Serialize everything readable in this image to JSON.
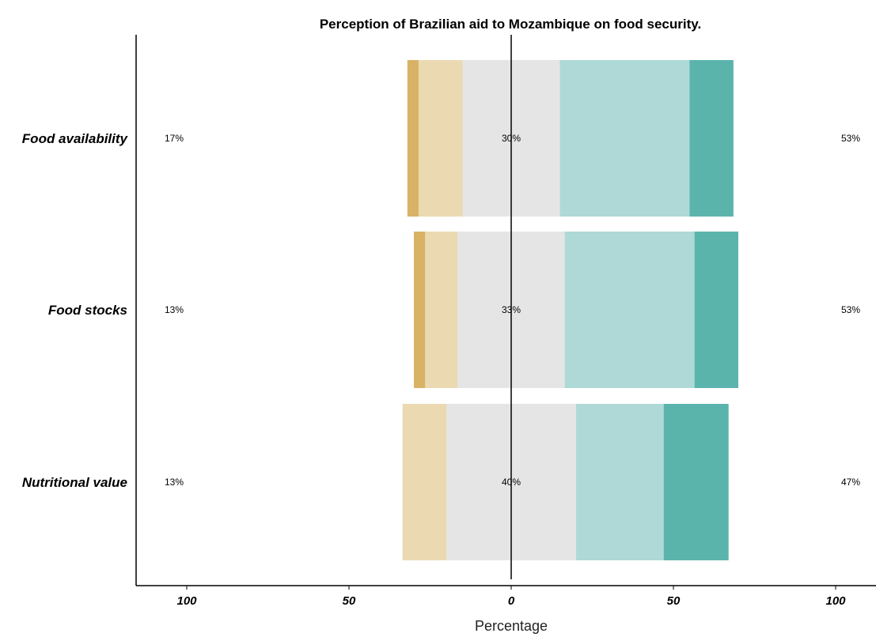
{
  "chart_data": {
    "type": "bar",
    "subtype": "diverging-stacked-likert",
    "orientation": "horizontal",
    "title": "Perception of Brazilian aid to Mozambique on food security.",
    "xlabel": "Percentage",
    "ylabel": "",
    "xlim": [
      -100,
      100
    ],
    "x_ticks": [
      -100,
      -50,
      0,
      50,
      100
    ],
    "x_tick_labels": [
      "100",
      "50",
      "0",
      "50",
      "100"
    ],
    "grid": false,
    "legend": "none",
    "categories": [
      "Food availability",
      "Food stocks",
      "Nutritional value"
    ],
    "series": [
      {
        "color": "#D9B365",
        "values": [
          3.5,
          3.5,
          0
        ]
      },
      {
        "color": "#EBD9B2",
        "values": [
          13.5,
          10,
          13.5
        ]
      },
      {
        "color": "#E5E5E5",
        "values": [
          30,
          33,
          40
        ]
      },
      {
        "color": "#AED9D6",
        "values": [
          40,
          40,
          27
        ]
      },
      {
        "color": "#5BB4AC",
        "values": [
          13.5,
          13.5,
          20
        ]
      }
    ],
    "neutral_series_index": 2,
    "left_labels": [
      "17%",
      "13%",
      "13%"
    ],
    "center_labels": [
      "30%",
      "33%",
      "40%"
    ],
    "right_labels": [
      "53%",
      "53%",
      "47%"
    ]
  }
}
